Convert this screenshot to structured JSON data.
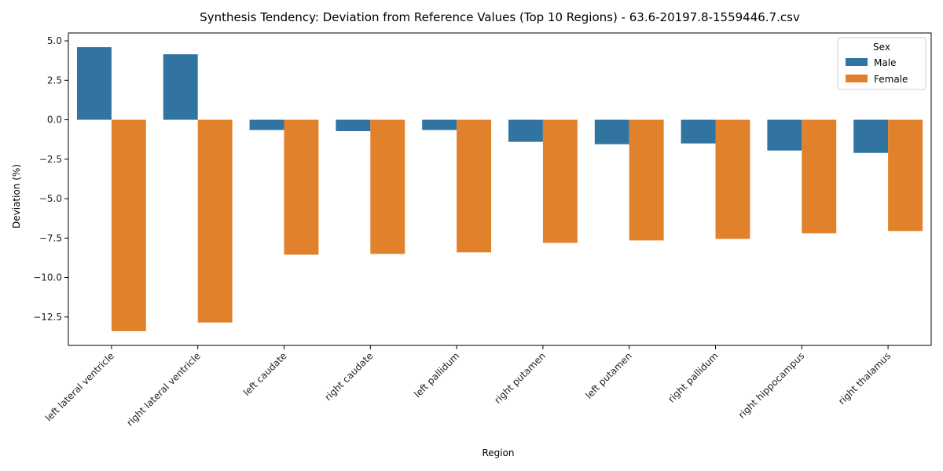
{
  "chart_data": {
    "type": "bar",
    "title": "Synthesis Tendency: Deviation from Reference Values (Top 10 Regions) - 63.6-20197.8-1559446.7.csv",
    "xlabel": "Region",
    "ylabel": "Deviation (%)",
    "ylim": [
      -14.3,
      5.5
    ],
    "yticks": [
      5.0,
      2.5,
      0.0,
      -2.5,
      -5.0,
      -7.5,
      -10.0,
      -12.5
    ],
    "ytick_labels": [
      "5.0",
      "2.5",
      "0.0",
      "−2.5",
      "−5.0",
      "−7.5",
      "−10.0",
      "−12.5"
    ],
    "categories": [
      "left lateral ventricle",
      "right lateral ventricle",
      "left caudate",
      "right caudate",
      "left pallidum",
      "right putamen",
      "left putamen",
      "right pallidum",
      "right hippocampus",
      "right thalamus"
    ],
    "series": [
      {
        "name": "Male",
        "color": "#3274a1",
        "values": [
          4.6,
          4.15,
          -0.65,
          -0.72,
          -0.65,
          -1.4,
          -1.55,
          -1.5,
          -1.95,
          -2.1
        ]
      },
      {
        "name": "Female",
        "color": "#e1812c",
        "values": [
          -13.4,
          -12.85,
          -8.55,
          -8.5,
          -8.4,
          -7.8,
          -7.65,
          -7.55,
          -7.2,
          -7.05
        ]
      }
    ],
    "legend": {
      "title": "Sex",
      "position": "top-right"
    },
    "grid": false
  }
}
